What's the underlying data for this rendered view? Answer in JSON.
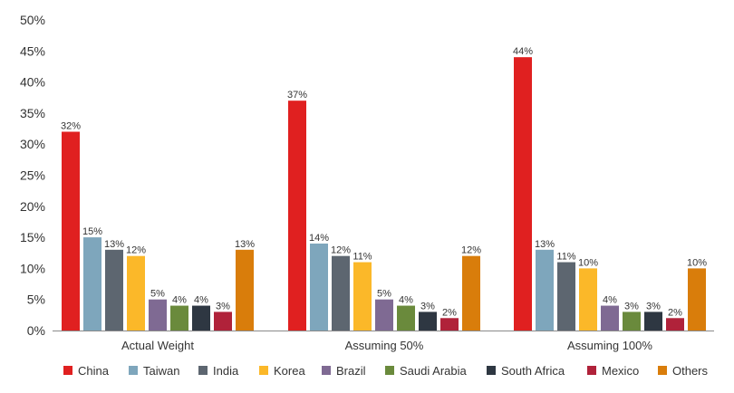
{
  "chart_data": {
    "type": "bar",
    "categories": [
      "Actual Weight",
      "Assuming 50%",
      "Assuming 100%"
    ],
    "series": [
      {
        "name": "China",
        "color": "#e02020",
        "values": [
          32,
          37,
          44
        ]
      },
      {
        "name": "Taiwan",
        "color": "#7ea6bc",
        "values": [
          15,
          14,
          13
        ]
      },
      {
        "name": "India",
        "color": "#5d6670",
        "values": [
          13,
          12,
          11
        ]
      },
      {
        "name": "Korea",
        "color": "#fbb829",
        "values": [
          12,
          11,
          10
        ]
      },
      {
        "name": "Brazil",
        "color": "#7f6a93",
        "values": [
          5,
          5,
          4
        ]
      },
      {
        "name": "Saudi Arabia",
        "color": "#6a8a3c",
        "values": [
          4,
          4,
          3
        ]
      },
      {
        "name": "South Africa",
        "color": "#2e3742",
        "values": [
          4,
          3,
          3
        ]
      },
      {
        "name": "Mexico",
        "color": "#b0223a",
        "values": [
          3,
          2,
          2
        ]
      },
      {
        "name": "Others",
        "color": "#d97d0b",
        "values": [
          13,
          12,
          10
        ]
      }
    ],
    "data_labels": [
      [
        "32%",
        "37%",
        "44%"
      ],
      [
        "15%",
        "14%",
        "13%"
      ],
      [
        "13%",
        "12%",
        "11%"
      ],
      [
        "12%",
        "11%",
        "10%"
      ],
      [
        "5%",
        "5%",
        "4%"
      ],
      [
        "4%",
        "4%",
        "3%"
      ],
      [
        "4%",
        "3%",
        "3%"
      ],
      [
        "3%",
        "2%",
        "2%"
      ],
      [
        "13%",
        "12%",
        "10%"
      ]
    ],
    "title": "",
    "xlabel": "",
    "ylabel": "",
    "ylim": [
      0,
      50
    ],
    "yticks": [
      0,
      5,
      10,
      15,
      20,
      25,
      30,
      35,
      40,
      45,
      50
    ],
    "ytick_labels": [
      "0%",
      "5%",
      "10%",
      "15%",
      "20%",
      "25%",
      "30%",
      "35%",
      "40%",
      "45%",
      "50%"
    ],
    "grid": false,
    "legend": "bottom"
  }
}
